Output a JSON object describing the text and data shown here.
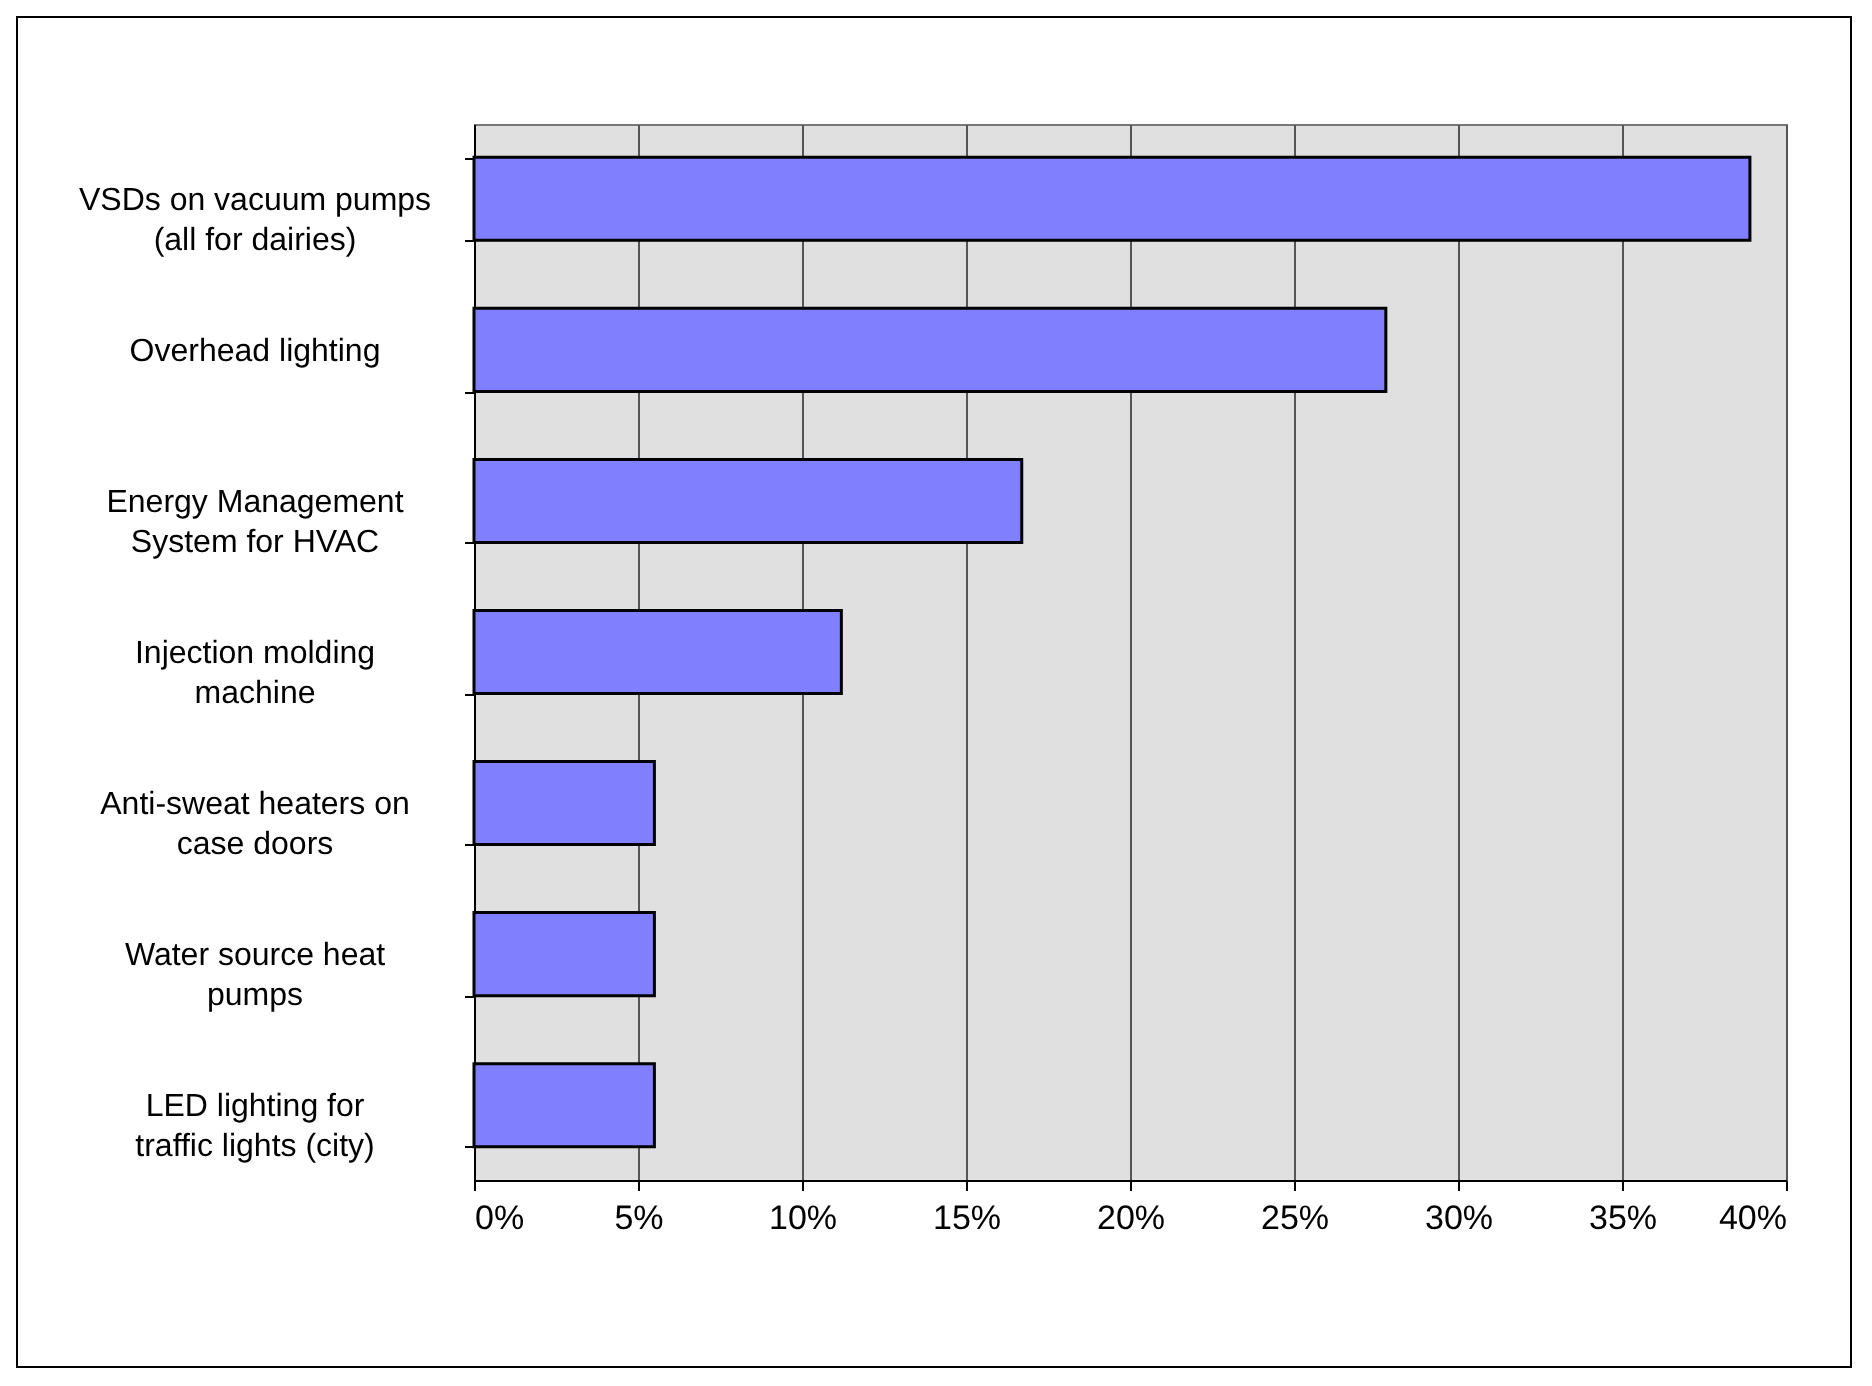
{
  "chart_data": {
    "type": "bar",
    "orientation": "horizontal",
    "categories": [
      "VSDs on vacuum pumps (all for dairies)",
      "Overhead lighting",
      "Energy Management System for HVAC",
      "Injection molding machine",
      "Anti-sweat heaters on case doors",
      "Water source heat pumps",
      "LED lighting for traffic lights (city)"
    ],
    "values": [
      38.9,
      27.8,
      16.7,
      11.2,
      5.5,
      5.5,
      5.5
    ],
    "color": "#8080ff",
    "xlim": [
      0,
      40
    ],
    "xticks": [
      {
        "value": 0,
        "label": "0%"
      },
      {
        "value": 5,
        "label": "5%"
      },
      {
        "value": 10,
        "label": "10%"
      },
      {
        "value": 15,
        "label": "15%"
      },
      {
        "value": 20,
        "label": "20%"
      },
      {
        "value": 25,
        "label": "25%"
      },
      {
        "value": 30,
        "label": "30%"
      },
      {
        "value": 35,
        "label": "35%"
      },
      {
        "value": 40,
        "label": "40%"
      }
    ],
    "grid": "x"
  }
}
